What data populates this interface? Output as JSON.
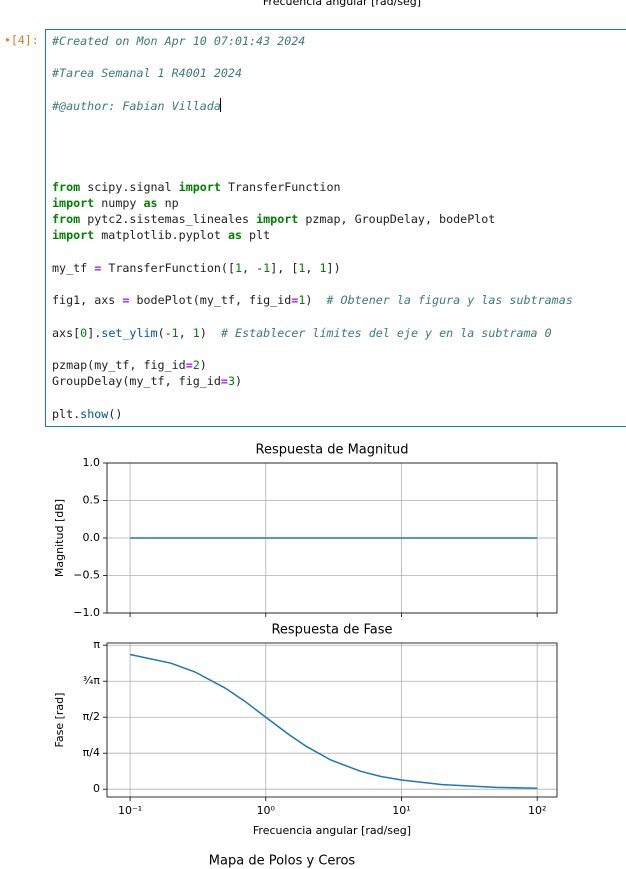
{
  "top_caption": "Frecuencia angular [rad/seg]",
  "cell": {
    "prompt": "•[4]:",
    "code": "#Created on Mon Apr 10 07:01:43 2024\n\n#Tarea Semanal 1 R4001 2024\n\n#@author: Fabian Villada\n\n\n\n\nfrom scipy.signal import TransferFunction\nimport numpy as np\nfrom pytc2.sistemas_lineales import pzmap, GroupDelay, bodePlot\nimport matplotlib.pyplot as plt\n\nmy_tf = TransferFunction([1, -1], [1, 1])\n\nfig1, axs = bodePlot(my_tf, fig_id=1)  # Obtener la figura y las subtramas\n\naxs[0].set_ylim(-1, 1)  # Establecer límites del eje y en la subtrama 0\n\npzmap(my_tf, fig_id=2)\nGroupDelay(my_tf, fig_id=3)\n\nplt.show()"
  },
  "chart_data": [
    {
      "type": "line",
      "title": "Respuesta de Magnitud",
      "y_label": "Magnitud [dB]",
      "x_scale": "log",
      "xlim": [
        0.0676,
        140
      ],
      "ylim": [
        -1,
        1
      ],
      "xticks": [
        0.1,
        1,
        10,
        100
      ],
      "x_tick_labels": false,
      "yticks": [
        {
          "value": 1,
          "label": "1.0"
        },
        {
          "value": 0.5,
          "label": "0.5"
        },
        {
          "value": 0,
          "label": "0.0"
        },
        {
          "value": -0.5,
          "label": "−0.5"
        },
        {
          "value": -1,
          "label": "−1.0"
        }
      ],
      "grid": true,
      "color": "#1f77b4",
      "x": [
        0.1,
        100
      ],
      "values": [
        0,
        0
      ]
    },
    {
      "type": "line",
      "title": "Respuesta de Fase",
      "y_label": "Fase [rad]",
      "x_label": "Frecuencia angular [rad/seg]",
      "x_scale": "log",
      "xlim": [
        0.0676,
        140
      ],
      "ylim": [
        -0.17,
        3.19
      ],
      "xticks": [
        {
          "value": 0.1,
          "label": "10⁻¹"
        },
        {
          "value": 1,
          "label": "10⁰"
        },
        {
          "value": 10,
          "label": "10¹"
        },
        {
          "value": 100,
          "label": "10²"
        }
      ],
      "x_tick_labels": true,
      "yticks": [
        {
          "value": 3.1416,
          "label": "π"
        },
        {
          "value": 2.3562,
          "label": "¾π"
        },
        {
          "value": 1.5708,
          "label": "π/2"
        },
        {
          "value": 0.7854,
          "label": "π/4"
        },
        0
      ],
      "grid": true,
      "color": "#1f77b4",
      "x": [
        0.1,
        0.2,
        0.3,
        0.5,
        0.7,
        1,
        1.5,
        2,
        3,
        5,
        7,
        10,
        20,
        50,
        100
      ],
      "values": [
        2.94,
        2.75,
        2.56,
        2.21,
        1.92,
        1.57,
        1.18,
        0.93,
        0.64,
        0.39,
        0.28,
        0.2,
        0.1,
        0.04,
        0.02
      ]
    }
  ],
  "next_title": "Mapa de Polos y Ceros"
}
